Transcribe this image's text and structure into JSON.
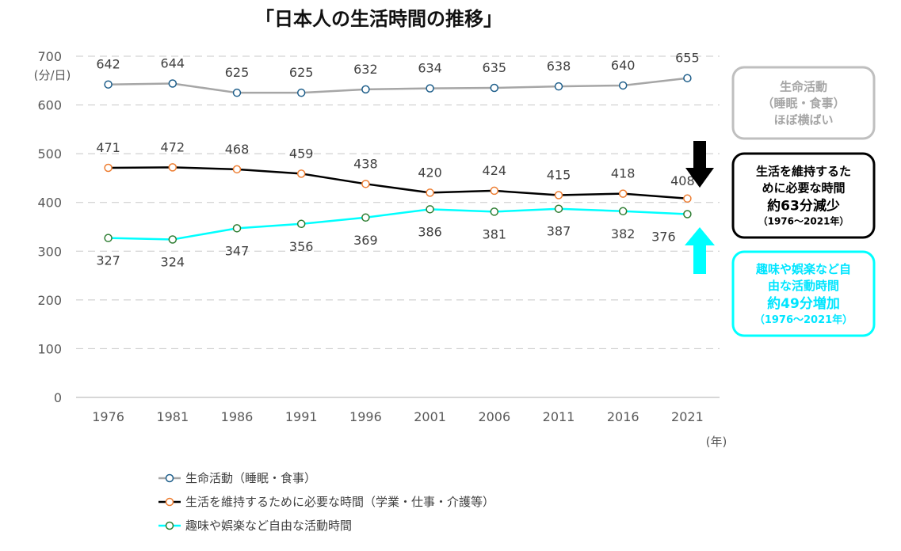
{
  "chart_data": {
    "type": "line",
    "title": "「日本人の生活時間の推移」",
    "ylabel": "(分/日)",
    "xunit": "(年)",
    "categories": [
      "1976",
      "1981",
      "1986",
      "1991",
      "1996",
      "2001",
      "2006",
      "2011",
      "2016",
      "2021"
    ],
    "ylim": [
      0,
      700
    ],
    "yticks": [
      0,
      100,
      200,
      300,
      400,
      500,
      600,
      700
    ],
    "grid": true,
    "legend_position": "bottom-left",
    "series": [
      {
        "name": "生命活動（睡眠・食事）",
        "values": [
          642,
          644,
          625,
          625,
          632,
          634,
          635,
          638,
          640,
          655
        ],
        "line_color": "#a6a6a6",
        "marker_color": "#1f5f8b",
        "label_position": "above"
      },
      {
        "name": "生活を維持するために必要な時間（学業・仕事・介護等）",
        "values": [
          471,
          472,
          468,
          459,
          438,
          420,
          424,
          415,
          418,
          408
        ],
        "line_color": "#000000",
        "marker_color": "#ed7d31",
        "label_position": "above"
      },
      {
        "name": "趣味や娯楽など自由な活動時間",
        "values": [
          327,
          324,
          347,
          356,
          369,
          386,
          381,
          387,
          382,
          376
        ],
        "line_color": "#00ffff",
        "marker_color": "#2e7d32",
        "label_position": "below"
      }
    ],
    "annotations": [
      {
        "id": "life",
        "lines": [
          "生命活動",
          "（睡眠・食事）",
          "ほぼ横ばい"
        ],
        "color": "#bfbfbf"
      },
      {
        "id": "maintain",
        "lines": [
          "生活を維持するた",
          "めに必要な時間",
          "約63分減少",
          "（1976〜2021年）"
        ],
        "color": "#000000",
        "arrow": "down"
      },
      {
        "id": "free",
        "lines": [
          "趣味や娯楽など自",
          "由な活動時間",
          "約49分増加",
          "（1976〜2021年）"
        ],
        "color": "#00ffff",
        "arrow": "up"
      }
    ]
  }
}
